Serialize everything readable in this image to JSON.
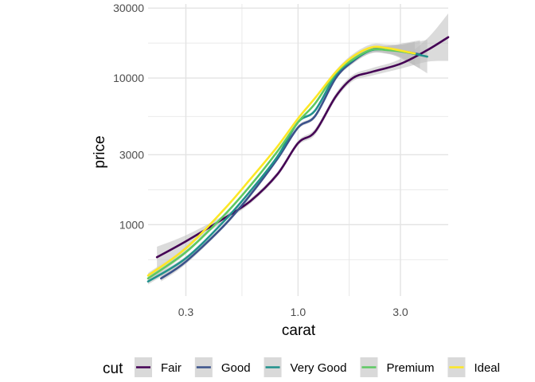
{
  "chart_data": {
    "type": "line",
    "subtype": "smoothed lines with grey confidence bands",
    "title": "",
    "xlabel": "carat",
    "ylabel": "price",
    "x_scale": "log10",
    "y_scale": "log10",
    "xlim": [
      0.2,
      5.01
    ],
    "ylim": [
      326,
      32000
    ],
    "x_ticks": [
      0.3,
      1.0,
      3.0
    ],
    "x_tick_labels": [
      "0.3",
      "1.0",
      "3.0"
    ],
    "y_ticks": [
      1000,
      3000,
      10000,
      30000
    ],
    "y_tick_labels": [
      "1000",
      "3000",
      "10000",
      "30000"
    ],
    "grid": true,
    "legend": {
      "title": "cut",
      "position": "bottom"
    },
    "series": [
      {
        "name": "Fair",
        "color": "#440154",
        "x": [
          0.22,
          0.3,
          0.45,
          0.6,
          0.8,
          1.0,
          1.2,
          1.5,
          1.8,
          2.2,
          3.0,
          4.0,
          5.01
        ],
        "y": [
          600,
          770,
          1100,
          1450,
          2200,
          3600,
          4300,
          7500,
          10000,
          11000,
          12500,
          15500,
          19000
        ],
        "band_half_width_factor": [
          1.18,
          1.1,
          1.05,
          1.04,
          1.04,
          1.04,
          1.05,
          1.05,
          1.05,
          1.06,
          1.08,
          1.2,
          1.45
        ]
      },
      {
        "name": "Good",
        "color": "#3b528b",
        "x": [
          0.23,
          0.3,
          0.45,
          0.6,
          0.8,
          1.0,
          1.2,
          1.5,
          1.8,
          2.2,
          2.6,
          3.0,
          3.7
        ],
        "y": [
          430,
          560,
          980,
          1600,
          2800,
          4600,
          5500,
          10000,
          13000,
          15600,
          15600,
          15300,
          14500
        ],
        "band_half_width_factor": [
          1.05,
          1.04,
          1.03,
          1.03,
          1.03,
          1.03,
          1.03,
          1.03,
          1.04,
          1.05,
          1.06,
          1.12,
          1.25
        ]
      },
      {
        "name": "Very Good",
        "color": "#21918c",
        "x": [
          0.2,
          0.3,
          0.45,
          0.6,
          0.8,
          1.0,
          1.2,
          1.5,
          1.8,
          2.2,
          2.6,
          3.0,
          4.0
        ],
        "y": [
          410,
          590,
          1050,
          1700,
          2900,
          5000,
          6000,
          10500,
          13200,
          15500,
          15600,
          15300,
          14000
        ],
        "band_half_width_factor": [
          1.05,
          1.03,
          1.02,
          1.02,
          1.02,
          1.02,
          1.02,
          1.03,
          1.04,
          1.05,
          1.06,
          1.1,
          1.3
        ]
      },
      {
        "name": "Premium",
        "color": "#5ec962",
        "x": [
          0.2,
          0.3,
          0.45,
          0.6,
          0.8,
          1.0,
          1.2,
          1.5,
          1.8,
          2.2,
          2.6,
          3.0,
          3.5
        ],
        "y": [
          430,
          650,
          1150,
          1850,
          3150,
          5000,
          6700,
          10800,
          13400,
          15600,
          15500,
          15200,
          14700
        ],
        "band_half_width_factor": [
          1.05,
          1.03,
          1.02,
          1.02,
          1.02,
          1.02,
          1.02,
          1.03,
          1.04,
          1.05,
          1.06,
          1.1,
          1.2
        ]
      },
      {
        "name": "Ideal",
        "color": "#fde725",
        "x": [
          0.2,
          0.3,
          0.45,
          0.6,
          0.8,
          1.0,
          1.2,
          1.5,
          1.8,
          2.2,
          2.6,
          3.0,
          3.5
        ],
        "y": [
          450,
          690,
          1260,
          2050,
          3400,
          5300,
          7300,
          11000,
          14000,
          16200,
          16000,
          15400,
          14700
        ],
        "band_half_width_factor": [
          1.04,
          1.03,
          1.02,
          1.02,
          1.02,
          1.02,
          1.02,
          1.03,
          1.04,
          1.05,
          1.06,
          1.1,
          1.2
        ]
      }
    ]
  },
  "style": {
    "band_color": "#bdbdbd",
    "grid_color": "#e3e3e3",
    "legend_key_bg": "#d9d9d9"
  }
}
